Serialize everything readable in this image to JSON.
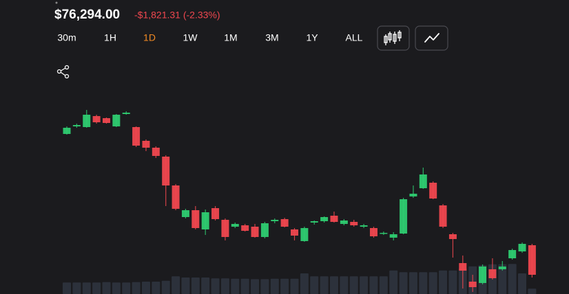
{
  "header": {
    "price": "$76,294.00",
    "change": "-$1,821.31 (-2.33%)"
  },
  "timeframes": [
    "30m",
    "1H",
    "1D",
    "1W",
    "1M",
    "3M",
    "1Y",
    "ALL"
  ],
  "active_timeframe": "1D",
  "chart_data": {
    "type": "candlestick",
    "open": [
      78139,
      78238,
      78229,
      78373,
      78346,
      78238,
      78400,
      78229,
      78049,
      77959,
      77842,
      77464,
      77050,
      77140,
      76888,
      77167,
      77014,
      76924,
      76942,
      76924,
      76789,
      76996,
      77023,
      76888,
      76735,
      76978,
      76996,
      77068,
      76960,
      76987,
      76924,
      76906,
      76834,
      76780,
      76834,
      77320,
      77428,
      77500,
      77203,
      76825,
      76447,
      76204,
      76186,
      76366,
      76366,
      76510,
      76600,
      76681
    ],
    "high": [
      78238,
      78274,
      78454,
      78391,
      78355,
      78400,
      78436,
      78238,
      78067,
      77977,
      77860,
      77482,
      77158,
      77194,
      77149,
      77194,
      77032,
      76978,
      76960,
      76960,
      76987,
      77032,
      77041,
      76906,
      76924,
      77005,
      77059,
      77122,
      77023,
      77014,
      76960,
      76924,
      76861,
      76852,
      77302,
      77464,
      77698,
      77518,
      77221,
      76843,
      76546,
      76294,
      76429,
      76510,
      76474,
      76636,
      76717,
      76699
    ],
    "low": [
      78130,
      78220,
      78220,
      78274,
      78274,
      78229,
      78391,
      77968,
      77914,
      77824,
      77194,
      77140,
      77032,
      76888,
      76816,
      77005,
      76744,
      76906,
      76861,
      76780,
      76771,
      76969,
      76915,
      76744,
      76726,
      76951,
      76978,
      76978,
      76942,
      76924,
      76906,
      76780,
      76816,
      76744,
      76825,
      77302,
      77419,
      77284,
      76906,
      76519,
      76114,
      76069,
      76168,
      76231,
      76348,
      76492,
      76582,
      76258
    ],
    "close": [
      78220,
      78256,
      78391,
      78292,
      78283,
      78391,
      78418,
      77986,
      77959,
      77851,
      77464,
      77158,
      77140,
      76906,
      77113,
      77023,
      76789,
      76960,
      76870,
      76789,
      76969,
      77014,
      76924,
      76807,
      76906,
      76996,
      77050,
      76987,
      77005,
      76942,
      76942,
      76798,
      76843,
      76825,
      77284,
      77356,
      77608,
      77293,
      76924,
      76762,
      76348,
      76132,
      76402,
      76249,
      76402,
      76618,
      76699,
      76294
    ],
    "volume": [
      28,
      28,
      28,
      28,
      29,
      28,
      28,
      29,
      30,
      30,
      32,
      43,
      40,
      40,
      40,
      38,
      38,
      37,
      37,
      36,
      36,
      37,
      37,
      37,
      50,
      43,
      43,
      43,
      43,
      43,
      43,
      43,
      43,
      57,
      53,
      53,
      53,
      53,
      57,
      57,
      63,
      67,
      70,
      72,
      72,
      73,
      50,
      13
    ],
    "ylim": [
      76042,
      78634
    ],
    "volume_lim": [
      0,
      100
    ],
    "up_color": "#2ecc71",
    "down_color": "#f0474f",
    "volume_color": "#2c313b"
  }
}
